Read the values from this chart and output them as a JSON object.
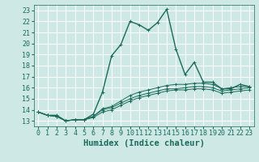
{
  "title": "",
  "xlabel": "Humidex (Indice chaleur)",
  "ylabel": "",
  "bg_color": "#cde8e5",
  "grid_color": "#ffffff",
  "line_color": "#1a6b5a",
  "xlim": [
    -0.5,
    23.5
  ],
  "ylim": [
    12.5,
    23.5
  ],
  "yticks": [
    13,
    14,
    15,
    16,
    17,
    18,
    19,
    20,
    21,
    22,
    23
  ],
  "xticks": [
    0,
    1,
    2,
    3,
    4,
    5,
    6,
    7,
    8,
    9,
    10,
    11,
    12,
    13,
    14,
    15,
    16,
    17,
    18,
    19,
    20,
    21,
    22,
    23
  ],
  "series": [
    [
      13.8,
      13.5,
      13.5,
      13.0,
      13.1,
      13.1,
      13.6,
      15.6,
      18.9,
      19.9,
      22.0,
      21.7,
      21.2,
      21.9,
      23.1,
      19.5,
      17.2,
      18.3,
      16.5,
      16.5,
      15.9,
      15.9,
      16.3,
      16.1
    ],
    [
      13.8,
      13.5,
      13.4,
      13.0,
      13.1,
      13.1,
      13.4,
      14.1,
      14.3,
      14.8,
      15.3,
      15.6,
      15.8,
      16.0,
      16.2,
      16.3,
      16.3,
      16.4,
      16.4,
      16.3,
      15.9,
      16.0,
      16.1,
      16.1
    ],
    [
      13.8,
      13.5,
      13.4,
      13.0,
      13.1,
      13.1,
      13.4,
      14.0,
      14.2,
      14.6,
      15.0,
      15.3,
      15.5,
      15.7,
      15.9,
      15.9,
      16.0,
      16.1,
      16.1,
      16.0,
      15.7,
      15.8,
      15.9,
      16.0
    ],
    [
      13.8,
      13.5,
      13.4,
      13.0,
      13.1,
      13.1,
      13.3,
      13.8,
      14.0,
      14.4,
      14.8,
      15.1,
      15.3,
      15.5,
      15.7,
      15.8,
      15.8,
      15.9,
      15.9,
      15.8,
      15.5,
      15.6,
      15.7,
      15.8
    ]
  ],
  "font_family": "monospace",
  "tick_fontsize": 6.0,
  "label_fontsize": 7.5
}
